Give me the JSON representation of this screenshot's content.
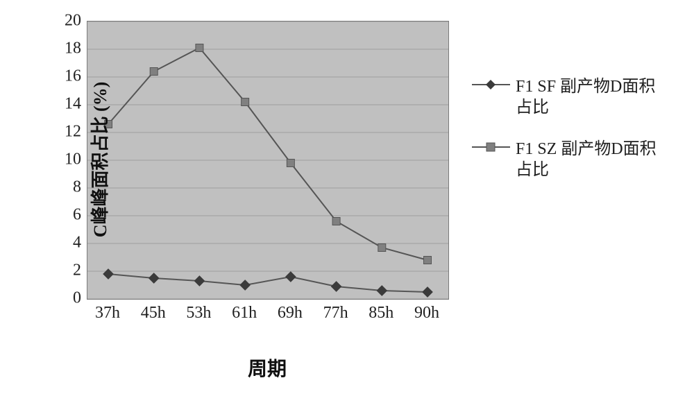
{
  "chart": {
    "type": "line",
    "plot_background": "#c0c0c0",
    "grid_color": "#9e9e9e",
    "border_color": "#7a7a7a",
    "outer_background": "#ffffff",
    "x_axis": {
      "title": "周期",
      "categories": [
        "37h",
        "45h",
        "53h",
        "61h",
        "69h",
        "77h",
        "85h",
        "90h"
      ],
      "tick_fontsize": 24,
      "title_fontsize": 28
    },
    "y_axis": {
      "title": "C峰峰面积占比 (%)",
      "min": 0,
      "max": 20,
      "tick_step": 2,
      "ticks": [
        0,
        2,
        4,
        6,
        8,
        10,
        12,
        14,
        16,
        18,
        20
      ],
      "tick_fontsize": 24,
      "title_fontsize": 26
    },
    "series": [
      {
        "name": "F1 SF 副产物D面积占比",
        "marker": "diamond",
        "marker_size": 10,
        "line_color": "#555555",
        "marker_fill": "#3b3b3b",
        "line_width": 2,
        "data": [
          1.8,
          1.5,
          1.3,
          1.0,
          1.6,
          0.9,
          0.6,
          0.5
        ]
      },
      {
        "name": "F1 SZ 副产物D面积占比",
        "marker": "square",
        "marker_size": 11,
        "line_color": "#555555",
        "marker_fill": "#808080",
        "line_width": 2,
        "data": [
          12.6,
          16.4,
          18.1,
          14.2,
          9.8,
          5.6,
          3.7,
          2.8
        ]
      }
    ],
    "legend": {
      "position": "right",
      "fontsize": 24
    }
  }
}
